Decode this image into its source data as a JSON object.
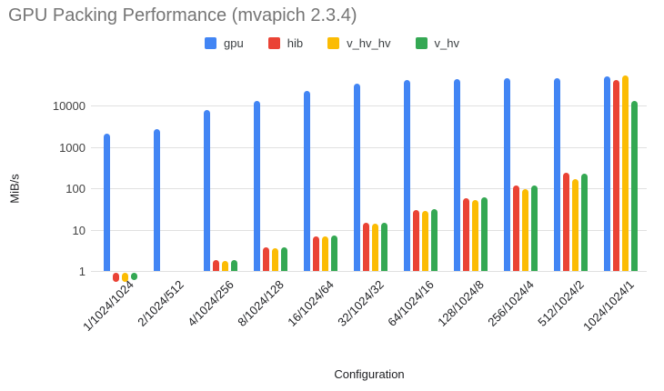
{
  "chart_data": {
    "type": "bar",
    "scale": "log",
    "title": "GPU Packing Performance (mvapich 2.3.4)",
    "xlabel": "Configuration",
    "ylabel": "MiB/s",
    "yticks": [
      1,
      10,
      100,
      1000,
      10000
    ],
    "ylim": [
      0.5,
      95000
    ],
    "grid": "horizontal",
    "legend_position": "top",
    "categories": [
      "1/1024/1024",
      "2/1024/512",
      "4/1024/256",
      "8/1024/128",
      "16/1024/64",
      "32/1024/32",
      "64/1024/16",
      "128/1024/8",
      "256/1024/4",
      "512/1024/2",
      "1024/1024/1"
    ],
    "series": [
      {
        "name": "gpu",
        "color": "#4285F4",
        "values": [
          2100,
          2800,
          8000,
          13000,
          23000,
          35000,
          42000,
          44000,
          48000,
          46000,
          53000
        ]
      },
      {
        "name": "hib",
        "color": "#EA4335",
        "values": [
          0.55,
          null,
          1.8,
          3.7,
          7.0,
          14.5,
          30,
          58,
          115,
          235,
          43000
        ]
      },
      {
        "name": "v_hv_hv",
        "color": "#FBBC04",
        "values": [
          0.55,
          null,
          1.75,
          3.6,
          6.8,
          14.0,
          28,
          52,
          95,
          165,
          54000
        ]
      },
      {
        "name": "v_hv",
        "color": "#34A853",
        "values": [
          0.6,
          null,
          1.85,
          3.8,
          7.2,
          14.5,
          31,
          60,
          120,
          225,
          13000
        ]
      }
    ]
  },
  "colors": {
    "title_text": "#757575",
    "gridline": "#e0e0e0",
    "y_tick_text": "#424242",
    "x_tick_text": "#202124",
    "background": "#ffffff"
  }
}
